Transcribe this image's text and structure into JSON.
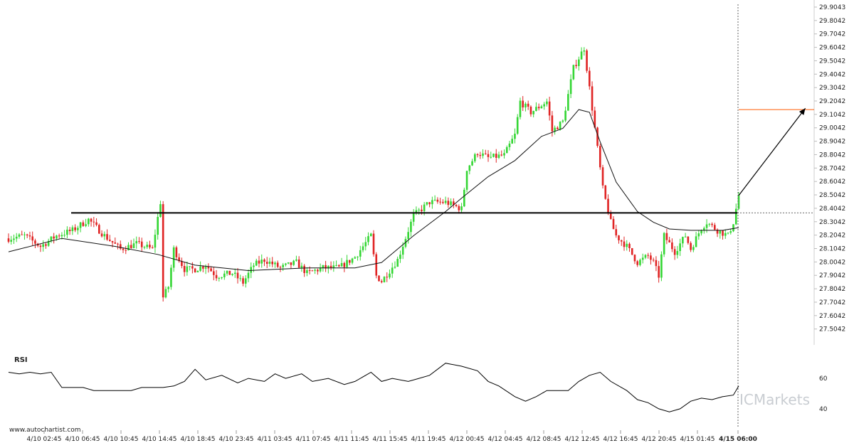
{
  "chart_data": [
    {
      "type": "candlestick",
      "y_ticks": [
        "29.9043",
        "29.8042",
        "29.7042",
        "29.6042",
        "29.5042",
        "29.4042",
        "29.3042",
        "29.2042",
        "29.1042",
        "29.0042",
        "28.9042",
        "28.8042",
        "28.7042",
        "28.6042",
        "28.5042",
        "28.4042",
        "28.3042",
        "28.2042",
        "28.1042",
        "28.0042",
        "27.9042",
        "27.8042",
        "27.7042",
        "27.6042",
        "27.5042"
      ],
      "ylim": [
        27.46,
        29.92
      ],
      "x_ticks": [
        "4/10 02:45",
        "4/10 06:45",
        "4/10 10:45",
        "4/10 14:45",
        "4/10 18:45",
        "4/10 23:45",
        "4/11 03:45",
        "4/11 07:45",
        "4/11 11:45",
        "4/11 15:45",
        "4/11 19:45",
        "4/12 00:45",
        "4/12 04:45",
        "4/12 08:45",
        "4/12 12:45",
        "4/12 16:45",
        "4/12 20:45",
        "4/15 01:45",
        "4/15 06:00"
      ],
      "price_path": [
        [
          0,
          28.18
        ],
        [
          6,
          28.2
        ],
        [
          12,
          28.12
        ],
        [
          18,
          28.2
        ],
        [
          24,
          28.24
        ],
        [
          30,
          28.32
        ],
        [
          36,
          28.2
        ],
        [
          42,
          28.1
        ],
        [
          48,
          28.14
        ],
        [
          54,
          28.1
        ],
        [
          57,
          28.45
        ],
        [
          58,
          27.74
        ],
        [
          60,
          27.82
        ],
        [
          62,
          28.1
        ],
        [
          66,
          27.95
        ],
        [
          70,
          27.95
        ],
        [
          74,
          27.98
        ],
        [
          78,
          27.9
        ],
        [
          84,
          27.92
        ],
        [
          88,
          27.85
        ],
        [
          92,
          27.98
        ],
        [
          96,
          28.02
        ],
        [
          102,
          27.96
        ],
        [
          108,
          28.0
        ],
        [
          112,
          27.92
        ],
        [
          118,
          27.96
        ],
        [
          124,
          27.96
        ],
        [
          130,
          28.04
        ],
        [
          136,
          28.2
        ],
        [
          138,
          27.9
        ],
        [
          140,
          27.86
        ],
        [
          146,
          28.02
        ],
        [
          152,
          28.35
        ],
        [
          158,
          28.45
        ],
        [
          164,
          28.45
        ],
        [
          170,
          28.4
        ],
        [
          172,
          28.7
        ],
        [
          176,
          28.82
        ],
        [
          180,
          28.78
        ],
        [
          186,
          28.8
        ],
        [
          190,
          28.95
        ],
        [
          192,
          29.2
        ],
        [
          196,
          29.12
        ],
        [
          202,
          29.2
        ],
        [
          204,
          28.98
        ],
        [
          208,
          29.05
        ],
        [
          212,
          29.45
        ],
        [
          216,
          29.6
        ],
        [
          218,
          29.3
        ],
        [
          221,
          28.85
        ],
        [
          223,
          28.55
        ],
        [
          226,
          28.3
        ],
        [
          228,
          28.2
        ],
        [
          232,
          28.12
        ],
        [
          236,
          28.0
        ],
        [
          240,
          28.05
        ],
        [
          242,
          28.0
        ],
        [
          244,
          27.9
        ],
        [
          246,
          28.2
        ],
        [
          250,
          28.08
        ],
        [
          254,
          28.2
        ],
        [
          256,
          28.1
        ],
        [
          260,
          28.26
        ],
        [
          262,
          28.3
        ],
        [
          266,
          28.24
        ],
        [
          270,
          28.2
        ],
        [
          272,
          28.3
        ],
        [
          274,
          28.5
        ]
      ],
      "moving_average_path": [
        [
          0,
          28.08
        ],
        [
          20,
          28.18
        ],
        [
          40,
          28.12
        ],
        [
          56,
          28.06
        ],
        [
          70,
          27.98
        ],
        [
          90,
          27.94
        ],
        [
          112,
          27.96
        ],
        [
          130,
          27.96
        ],
        [
          140,
          28.0
        ],
        [
          152,
          28.2
        ],
        [
          164,
          28.38
        ],
        [
          170,
          28.48
        ],
        [
          180,
          28.64
        ],
        [
          190,
          28.76
        ],
        [
          200,
          28.94
        ],
        [
          208,
          29.0
        ],
        [
          214,
          29.14
        ],
        [
          218,
          29.12
        ],
        [
          222,
          28.9
        ],
        [
          228,
          28.6
        ],
        [
          236,
          28.38
        ],
        [
          242,
          28.3
        ],
        [
          248,
          28.25
        ],
        [
          256,
          28.24
        ],
        [
          262,
          28.24
        ],
        [
          268,
          28.24
        ],
        [
          274,
          28.26
        ]
      ],
      "horizontal_level": 28.37,
      "projection": {
        "from": [
          274,
          28.5
        ],
        "to": [
          299,
          29.15
        ]
      },
      "target_level": 29.14,
      "current_price": 28.37
    },
    {
      "type": "line",
      "title": "RSI",
      "y_ticks": [
        "60",
        "40"
      ],
      "ylim": [
        32,
        75
      ],
      "values": [
        [
          0,
          64
        ],
        [
          4,
          63
        ],
        [
          8,
          64
        ],
        [
          12,
          63
        ],
        [
          16,
          64
        ],
        [
          20,
          54
        ],
        [
          28,
          54
        ],
        [
          32,
          52
        ],
        [
          40,
          52
        ],
        [
          46,
          52
        ],
        [
          50,
          54
        ],
        [
          58,
          54
        ],
        [
          62,
          55
        ],
        [
          66,
          58
        ],
        [
          70,
          66
        ],
        [
          74,
          59
        ],
        [
          80,
          62
        ],
        [
          86,
          57
        ],
        [
          90,
          60
        ],
        [
          96,
          58
        ],
        [
          100,
          63
        ],
        [
          104,
          60
        ],
        [
          110,
          63
        ],
        [
          114,
          58
        ],
        [
          120,
          60
        ],
        [
          126,
          56
        ],
        [
          130,
          58
        ],
        [
          136,
          64
        ],
        [
          140,
          58
        ],
        [
          144,
          60
        ],
        [
          150,
          58
        ],
        [
          154,
          60
        ],
        [
          158,
          62
        ],
        [
          164,
          70
        ],
        [
          170,
          68
        ],
        [
          176,
          65
        ],
        [
          180,
          58
        ],
        [
          184,
          55
        ],
        [
          190,
          48
        ],
        [
          194,
          45
        ],
        [
          198,
          48
        ],
        [
          202,
          52
        ],
        [
          210,
          52
        ],
        [
          214,
          58
        ],
        [
          218,
          62
        ],
        [
          222,
          64
        ],
        [
          226,
          58
        ],
        [
          232,
          52
        ],
        [
          236,
          46
        ],
        [
          240,
          44
        ],
        [
          244,
          40
        ],
        [
          248,
          38
        ],
        [
          252,
          40
        ],
        [
          256,
          45
        ],
        [
          260,
          47
        ],
        [
          264,
          46
        ],
        [
          268,
          48
        ],
        [
          272,
          49
        ],
        [
          274,
          55
        ]
      ]
    }
  ],
  "rsi_label": "RSI",
  "watermark": "ICMarkets",
  "credit": "www.autochartist.com",
  "colors": {
    "bull": "#34d634",
    "bear": "#e02424",
    "ma": "#111111",
    "level": "#000000",
    "target": "#ff5a00",
    "projection": "#000000",
    "rsi": "#000000",
    "grid_tick": "#222222"
  }
}
